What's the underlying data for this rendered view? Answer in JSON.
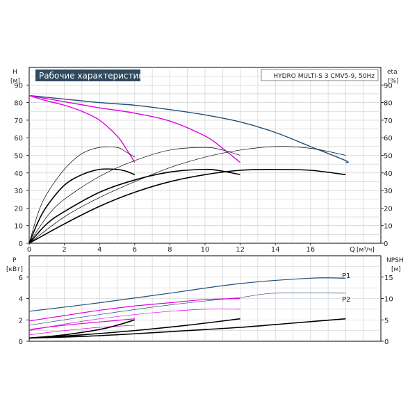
{
  "chart_data": [
    {
      "type": "line",
      "title": "Рабочие характеристики",
      "subtitle": "HYDRO MULTI-S 3 CMV5-9, 50Hz",
      "ylabel": "H",
      "yunit": "[м]",
      "y2label": "eta",
      "y2unit": "[%]",
      "xlabel": "Q",
      "xunit": "[м³/ч]",
      "xlim": [
        0,
        20
      ],
      "ylim": [
        0,
        100
      ],
      "y2lim": [
        0,
        100
      ],
      "xticks": [
        "0",
        "2",
        "4",
        "6",
        "8",
        "10",
        "12",
        "14",
        "16"
      ],
      "yticks": [
        "0",
        "10",
        "20",
        "30",
        "40",
        "50",
        "60",
        "70",
        "80",
        "90"
      ],
      "y2ticks": [
        "0",
        "10",
        "20",
        "30",
        "40",
        "50",
        "60",
        "70",
        "80",
        "90"
      ],
      "grid": true,
      "series": [
        {
          "color": "#1f4e79",
          "width": 1.4,
          "x": [
            0,
            2,
            4,
            6,
            8,
            10,
            12,
            14,
            16,
            18,
            18
          ],
          "y": [
            84,
            82,
            80,
            78.5,
            76,
            73,
            69,
            63,
            55,
            47,
            46
          ]
        },
        {
          "color": "#e000e0",
          "width": 1.4,
          "x": [
            0,
            2,
            4,
            6,
            8,
            10,
            11,
            12
          ],
          "y": [
            84,
            80.5,
            77,
            74,
            69.5,
            61,
            54,
            46
          ]
        },
        {
          "color": "#e000e0",
          "width": 1.4,
          "x": [
            0,
            1,
            2,
            3,
            4,
            5,
            5.5,
            6
          ],
          "y": [
            84,
            81,
            78.5,
            75,
            70,
            61,
            54,
            46
          ]
        },
        {
          "color": "#000000",
          "width": 0.7,
          "x": [
            0,
            0.5,
            1,
            2,
            3,
            4,
            5,
            5.5,
            6
          ],
          "y": [
            0,
            17,
            28,
            42,
            51,
            54.5,
            54.5,
            52,
            49
          ]
        },
        {
          "color": "#000000",
          "width": 0.7,
          "x": [
            0,
            1,
            2,
            4,
            6,
            8,
            10,
            11,
            12
          ],
          "y": [
            0,
            15,
            25,
            38,
            47,
            53,
            54.5,
            53,
            50
          ]
        },
        {
          "color": "#000000",
          "width": 0.7,
          "x": [
            0,
            2,
            4,
            6,
            8,
            10,
            12,
            14,
            16,
            18
          ],
          "y": [
            0,
            15,
            26,
            35,
            43,
            49,
            53,
            55,
            54,
            50
          ]
        },
        {
          "color": "#000000",
          "width": 1.6,
          "x": [
            0,
            0.5,
            1,
            2,
            3,
            4,
            5,
            5.5,
            6
          ],
          "y": [
            0,
            12,
            21,
            33,
            39,
            42,
            42,
            41,
            39
          ]
        },
        {
          "color": "#000000",
          "width": 1.6,
          "x": [
            0,
            1,
            2,
            4,
            6,
            8,
            10,
            11,
            12
          ],
          "y": [
            0,
            11,
            18,
            29,
            36,
            40.5,
            42,
            41,
            39
          ]
        },
        {
          "color": "#000000",
          "width": 1.6,
          "x": [
            0,
            2,
            4,
            6,
            8,
            10,
            12,
            14,
            16,
            18
          ],
          "y": [
            0,
            11,
            21,
            29,
            35,
            39,
            41.5,
            42,
            41.5,
            39
          ]
        }
      ]
    },
    {
      "type": "line",
      "ylabel": "P",
      "yunit": "[кВт]",
      "y2label": "NPSH",
      "y2unit": "[м]",
      "xlim": [
        0,
        20
      ],
      "ylim": [
        0,
        8
      ],
      "y2lim": [
        0,
        20
      ],
      "yticks": [
        "0",
        "2",
        "4",
        "6"
      ],
      "y2ticks": [
        "0",
        "5",
        "10",
        "15"
      ],
      "legend": [
        "P1",
        "P2"
      ],
      "grid": true,
      "series": [
        {
          "label": "P1",
          "color": "#1f4e79",
          "width": 1.2,
          "x": [
            0,
            4,
            8,
            12,
            16,
            18
          ],
          "y": [
            2.8,
            3.6,
            4.5,
            5.4,
            5.9,
            5.9
          ]
        },
        {
          "label": "P2",
          "color": "#1f4e79",
          "width": 0.7,
          "x": [
            0,
            4,
            8,
            12,
            14,
            18
          ],
          "y": [
            1.5,
            2.5,
            3.4,
            4.1,
            4.5,
            4.5
          ]
        },
        {
          "color": "#e000e0",
          "width": 1.2,
          "x": [
            0,
            2,
            4,
            6,
            8,
            10,
            12
          ],
          "y": [
            1.9,
            2.4,
            2.9,
            3.3,
            3.6,
            3.9,
            4.0
          ]
        },
        {
          "color": "#e000e0",
          "width": 0.7,
          "x": [
            0,
            2,
            4,
            6,
            8,
            10,
            12
          ],
          "y": [
            1.0,
            1.6,
            2.1,
            2.5,
            2.8,
            3.0,
            3.0
          ]
        },
        {
          "color": "#e000e0",
          "width": 1.2,
          "x": [
            0,
            2,
            4,
            6
          ],
          "y": [
            1.1,
            1.5,
            1.8,
            2.1
          ]
        },
        {
          "color": "#e000e0",
          "width": 0.7,
          "x": [
            0,
            2,
            4,
            6
          ],
          "y": [
            0.6,
            1.0,
            1.3,
            1.5
          ]
        },
        {
          "color": "#000000",
          "width": 1.6,
          "x": [
            0,
            3,
            6,
            9,
            12,
            15,
            18
          ],
          "y": [
            0.3,
            0.45,
            0.7,
            1.0,
            1.3,
            1.7,
            2.1
          ]
        },
        {
          "color": "#000000",
          "width": 1.6,
          "x": [
            0,
            3,
            6,
            9,
            12
          ],
          "y": [
            0.3,
            0.6,
            1.0,
            1.5,
            2.1
          ]
        },
        {
          "color": "#000000",
          "width": 1.6,
          "x": [
            0,
            2,
            4,
            5,
            6
          ],
          "y": [
            0.3,
            0.6,
            1.1,
            1.5,
            2.0
          ]
        }
      ]
    }
  ]
}
